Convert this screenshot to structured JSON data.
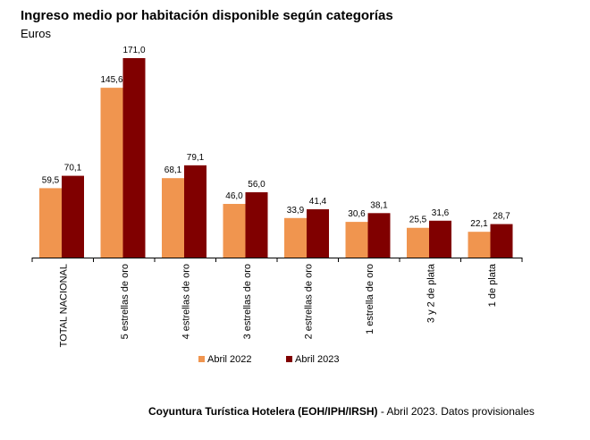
{
  "chart_data": {
    "type": "bar",
    "title": "Ingreso medio por habitación disponible según categorías",
    "subtitle": "Euros",
    "categories": [
      "TOTAL NACIONAL",
      "5 estrellas de oro",
      "4 estrellas de oro",
      "3 estrellas de oro",
      "2 estrellas de oro",
      "1 estrella de oro",
      "3 y 2 de plata",
      "1 de plata"
    ],
    "series": [
      {
        "name": "Abril 2022",
        "color": "#F0954F",
        "values": [
          59.5,
          145.6,
          68.1,
          46.0,
          33.9,
          30.6,
          25.5,
          22.1
        ],
        "labels": [
          "59,5",
          "145,6",
          "68,1",
          "46,0",
          "33,9",
          "30,6",
          "25,5",
          "22,1"
        ]
      },
      {
        "name": "Abril 2023",
        "color": "#800000",
        "values": [
          70.1,
          171.0,
          79.1,
          56.0,
          41.4,
          38.1,
          31.6,
          28.7
        ],
        "labels": [
          "70,1",
          "171,0",
          "79,1",
          "56,0",
          "41,4",
          "38,1",
          "31,6",
          "28,7"
        ]
      }
    ],
    "ylim": [
      0,
      171
    ],
    "grid": false,
    "legend_position": "bottom"
  },
  "footer": {
    "source_bold": "Coyuntura Turística Hotelera (EOH/IPH/IRSH)",
    "source_rest": " - Abril 2023. Datos provisionales"
  }
}
